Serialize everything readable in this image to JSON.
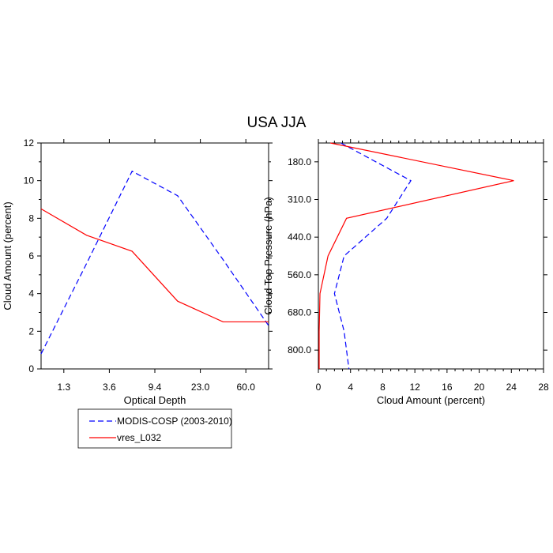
{
  "title": "USA JJA",
  "chart_data": [
    {
      "type": "line",
      "xlabel": "Optical Depth",
      "ylabel": "Cloud Amount (percent)",
      "x_tick_labels": [
        "1.3",
        "3.6",
        "9.4",
        "23.0",
        "60.0"
      ],
      "y_tick_labels": [
        "0",
        "2",
        "4",
        "6",
        "8",
        "10",
        "12"
      ],
      "ylim": [
        0,
        12
      ],
      "x_bins": 6,
      "series": [
        {
          "name": "MODIS-COSP (2003-2010)",
          "color": "#0000ff",
          "dash": "dashed",
          "values": [
            0.8,
            5.6,
            10.5,
            9.2,
            5.8,
            2.3
          ]
        },
        {
          "name": "vres_L032",
          "color": "#ff0000",
          "dash": "solid",
          "values": [
            8.5,
            7.1,
            6.25,
            3.6,
            2.5,
            2.5
          ]
        }
      ]
    },
    {
      "type": "line",
      "xlabel": "Cloud Amount (percent)",
      "ylabel": "Cloud Top Pressure (hPa)",
      "x_tick_labels": [
        "0",
        "4",
        "8",
        "12",
        "16",
        "20",
        "24",
        "28"
      ],
      "xlim": [
        0,
        28
      ],
      "y_tick_labels": [
        "180.0",
        "310.0",
        "440.0",
        "560.0",
        "680.0",
        "800.0"
      ],
      "y_levels": 7,
      "series": [
        {
          "name": "MODIS-COSP (2003-2010)",
          "color": "#0000ff",
          "dash": "dashed",
          "values": [
            2.8,
            11.5,
            8.5,
            3.2,
            2.0,
            3.2,
            3.8
          ]
        },
        {
          "name": "vres_L032",
          "color": "#ff0000",
          "dash": "solid",
          "values": [
            1.5,
            24.3,
            3.5,
            1.2,
            0.2,
            0.1,
            0.1
          ]
        }
      ]
    }
  ],
  "legend": {
    "items": [
      {
        "label": "MODIS-COSP (2003-2010)",
        "color": "#0000ff",
        "dash": "dashed"
      },
      {
        "label": "vres_L032",
        "color": "#ff0000",
        "dash": "solid"
      }
    ]
  }
}
